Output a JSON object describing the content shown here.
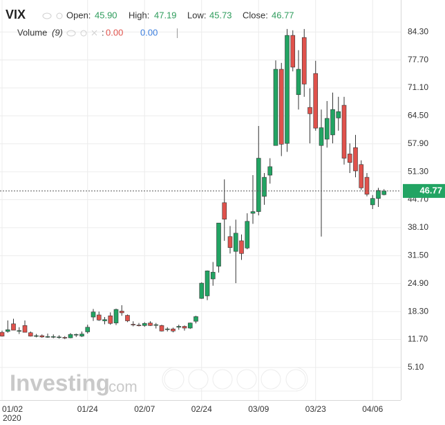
{
  "chart_data": {
    "type": "candlestick",
    "title": "VIX",
    "categories": [
      "01/02",
      null,
      null,
      null,
      null,
      null,
      null,
      null,
      null,
      null,
      null,
      null,
      null,
      null,
      null,
      "01/24",
      null,
      null,
      null,
      null,
      null,
      null,
      null,
      null,
      null,
      "02/07",
      null,
      null,
      null,
      null,
      null,
      null,
      null,
      null,
      null,
      "02/24",
      null,
      null,
      null,
      null,
      null,
      null,
      null,
      null,
      null,
      "03/09",
      null,
      null,
      null,
      null,
      null,
      null,
      null,
      null,
      null,
      "03/23",
      null,
      null,
      null,
      null,
      null,
      null,
      null,
      null,
      null,
      "04/06",
      null,
      null
    ],
    "x_sublabel": "2020",
    "open": [
      13.4,
      13.6,
      15.4,
      13.8,
      15.0,
      13.3,
      12.5,
      12.6,
      12.3,
      12.4,
      12.3,
      12.2,
      12.1,
      12.9,
      12.5,
      13.5,
      17.0,
      17.5,
      16.1,
      17.3,
      15.6,
      18.4,
      17.4,
      15.3,
      15.1,
      15.0,
      15.6,
      15.2,
      15.0,
      14.2,
      14.2,
      14.6,
      14.8,
      14.4,
      16.0,
      21.4,
      22.0,
      26.0,
      29.0,
      44.0,
      36.0,
      32.5,
      35.0,
      33.3,
      41.5,
      41.9,
      45.5,
      50.5,
      57.5,
      75.5,
      58.0,
      83.5,
      69.5,
      83.0,
      66.5,
      74.5,
      57.5,
      59.0,
      60.0,
      64.0,
      67.0,
      55.5,
      57.0,
      53.0,
      50.0,
      43.5,
      45.0,
      45.9
    ],
    "high": [
      13.8,
      16.2,
      16.6,
      14.6,
      16.2,
      13.6,
      13.0,
      12.9,
      13.1,
      12.9,
      12.7,
      12.5,
      13.2,
      13.1,
      13.6,
      15.2,
      18.9,
      18.3,
      17.0,
      18.1,
      19.0,
      19.8,
      17.6,
      16.0,
      15.6,
      15.8,
      16.0,
      15.6,
      15.2,
      14.6,
      14.5,
      15.2,
      15.0,
      15.7,
      17.3,
      25.2,
      28.0,
      30.0,
      39.2,
      49.5,
      38.5,
      40.0,
      36.5,
      41.5,
      50.5,
      62.1,
      51.0,
      54.5,
      77.6,
      77.0,
      85.0,
      84.7,
      80.0,
      85.0,
      71.0,
      77.5,
      66.0,
      68.0,
      70.0,
      69.0,
      69.0,
      58.0,
      60.0,
      54.0,
      51.0,
      45.8,
      47.5,
      47.19
    ],
    "low": [
      12.4,
      13.3,
      13.9,
      13.0,
      13.4,
      12.4,
      12.2,
      12.1,
      12.1,
      12.0,
      11.9,
      11.8,
      12.0,
      12.3,
      12.3,
      13.1,
      16.1,
      16.1,
      15.3,
      15.2,
      15.1,
      17.3,
      15.8,
      14.8,
      14.8,
      14.7,
      14.9,
      14.3,
      13.6,
      13.6,
      13.4,
      14.0,
      13.8,
      14.2,
      15.5,
      21.3,
      21.0,
      24.4,
      27.5,
      35.0,
      32.0,
      25.0,
      30.5,
      33.0,
      39.0,
      41.0,
      43.5,
      48.5,
      57.5,
      55.0,
      56.0,
      75.0,
      66.0,
      69.0,
      58.0,
      61.0,
      36.0,
      57.0,
      58.0,
      61.0,
      53.0,
      51.0,
      50.0,
      47.0,
      45.5,
      42.5,
      43.0,
      45.73
    ],
    "close": [
      12.5,
      14.0,
      13.9,
      13.8,
      13.4,
      12.5,
      12.6,
      12.3,
      12.4,
      12.4,
      12.3,
      12.1,
      12.9,
      12.9,
      13.0,
      14.6,
      18.2,
      16.3,
      16.4,
      15.5,
      18.8,
      18.0,
      16.1,
      15.2,
      15.0,
      15.5,
      15.0,
      15.2,
      13.7,
      14.2,
      13.7,
      14.8,
      14.4,
      15.6,
      17.1,
      25.0,
      27.9,
      27.6,
      39.2,
      40.1,
      33.4,
      36.8,
      32.0,
      39.6,
      41.9,
      54.5,
      50.0,
      52.5,
      75.5,
      57.8,
      83.5,
      76.0,
      75.5,
      72.0,
      65.0,
      61.6,
      61.7,
      63.9,
      66.0,
      65.5,
      54.5,
      53.5,
      51.5,
      47.5,
      46.0,
      45.0,
      46.9,
      46.77
    ],
    "colors": {
      "up": "#22a463",
      "down": "#e0524c"
    },
    "ylim": [
      -2.6,
      91.85
    ],
    "yticks": [
      {
        "value": 5.1,
        "label": "5.10"
      },
      {
        "value": 11.7,
        "label": "11.70"
      },
      {
        "value": 18.3,
        "label": "18.30"
      },
      {
        "value": 24.9,
        "label": "24.90"
      },
      {
        "value": 31.5,
        "label": "31.50"
      },
      {
        "value": 38.1,
        "label": "38.10"
      },
      {
        "value": 44.7,
        "label": "44.70"
      },
      {
        "value": 51.3,
        "label": "51.30"
      },
      {
        "value": 57.9,
        "label": "57.90"
      },
      {
        "value": 64.5,
        "label": "64.50"
      },
      {
        "value": 71.1,
        "label": "71.10"
      },
      {
        "value": 77.7,
        "label": "77.70"
      },
      {
        "value": 84.3,
        "label": "84.30"
      }
    ],
    "grid": true,
    "last_price": {
      "value": 46.77,
      "label": "46.77"
    }
  },
  "header": {
    "open_label": "Open:",
    "open": "45.90",
    "high_label": "High:",
    "high": "47.19",
    "low_label": "Low:",
    "low": "45.73",
    "close_label": "Close:",
    "close": "46.77",
    "volume_label": "Volume",
    "volume_period": "(9)",
    "separator": ":",
    "volume_values": [
      "0.00",
      "0.00"
    ]
  },
  "watermark": {
    "main": "Investing",
    "suffix": ".com"
  }
}
